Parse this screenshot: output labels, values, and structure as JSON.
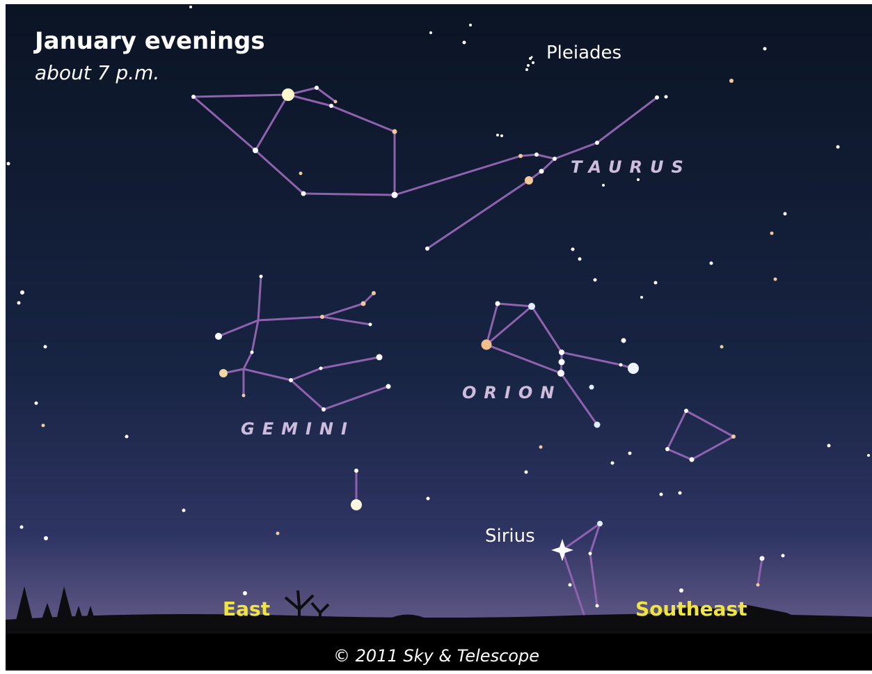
{
  "header": {
    "title": "January evenings",
    "subtitle": "about 7 p.m."
  },
  "labels": {
    "pleiades": "Pleiades",
    "taurus": "TAURUS",
    "orion": "ORION",
    "gemini": "GEMINI",
    "sirius": "Sirius"
  },
  "directions": {
    "east": "East",
    "southeast": "Southeast"
  },
  "footer": {
    "credit": "© 2011 Sky & Telescope"
  }
}
